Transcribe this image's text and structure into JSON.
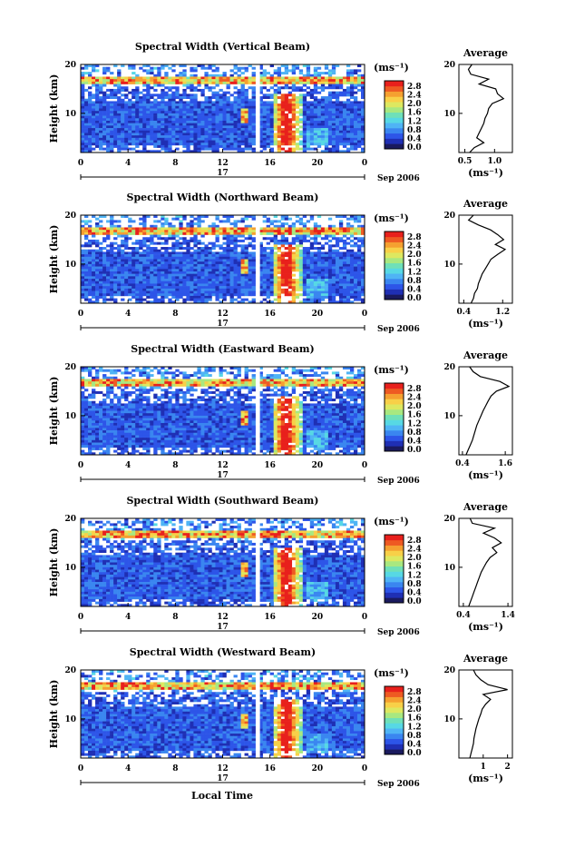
{
  "figure": {
    "title_prefix": "Spectral Width",
    "xlabel": "Local Time",
    "date_label": "Sep 2006",
    "day_label": "17",
    "ylabel": "Height (km)",
    "unit_label": "(ms⁻¹)",
    "avg_title": "Average",
    "avg_unit": "(ms⁻¹)"
  },
  "colorbar": {
    "ticks": [
      "2.8",
      "2.4",
      "2.0",
      "1.6",
      "1.2",
      "0.8",
      "0.4",
      "0.0"
    ],
    "range": [
      0,
      3.0
    ],
    "colors": [
      "#1a1a5e",
      "#1f2fb4",
      "#2d55e8",
      "#3a86f0",
      "#4fb4f5",
      "#57d8e4",
      "#6fe0b8",
      "#a8e880",
      "#dde860",
      "#f8d048",
      "#f5a030",
      "#ee5a22",
      "#e8201c"
    ]
  },
  "chart_data": [
    {
      "type": "heatmap",
      "title": "Spectral Width (Vertical Beam)",
      "xlabel": "Local Time",
      "ylabel": "Height (km)",
      "xticks": [
        "0",
        "4",
        "8",
        "12",
        "16",
        "20",
        "0"
      ],
      "yticks": [
        "20",
        "10"
      ],
      "xlim": [
        0,
        24
      ],
      "ylim": [
        2,
        20
      ],
      "colorbar_ticks": [
        "2.8",
        "2.4",
        "2.0",
        "1.6",
        "1.2",
        "0.8",
        "0.4",
        "0.0"
      ],
      "colorbar_unit": "(ms⁻¹)",
      "profile": {
        "title": "Average",
        "xlabel": "(ms⁻¹)",
        "xticks": [
          "0.5",
          "1.0"
        ],
        "xlim": [
          0.4,
          1.3
        ],
        "yticks": [
          "20",
          "10"
        ],
        "height_km": [
          2,
          3,
          4,
          5,
          6,
          7,
          8,
          9,
          10,
          11,
          12,
          13,
          14,
          15,
          16,
          17,
          18,
          19,
          20
        ],
        "width_ms": [
          0.58,
          0.66,
          0.82,
          0.7,
          0.74,
          0.78,
          0.82,
          0.84,
          0.88,
          0.9,
          0.96,
          1.15,
          1.05,
          1.02,
          0.74,
          0.9,
          0.6,
          0.56,
          0.62
        ]
      }
    },
    {
      "type": "heatmap",
      "title": "Spectral Width (Northward Beam)",
      "xlabel": "Local Time",
      "ylabel": "Height (km)",
      "xticks": [
        "0",
        "4",
        "8",
        "12",
        "16",
        "20",
        "0"
      ],
      "yticks": [
        "20",
        "10"
      ],
      "xlim": [
        0,
        24
      ],
      "ylim": [
        2,
        20
      ],
      "colorbar_ticks": [
        "2.8",
        "2.4",
        "2.0",
        "1.6",
        "1.2",
        "0.8",
        "0.4",
        "0.0"
      ],
      "colorbar_unit": "(ms⁻¹)",
      "profile": {
        "title": "Average",
        "xlabel": "(ms⁻¹)",
        "xticks": [
          "0.4",
          "1.2"
        ],
        "xlim": [
          0.3,
          1.4
        ],
        "yticks": [
          "20",
          "10"
        ],
        "height_km": [
          2,
          3,
          4,
          5,
          6,
          7,
          8,
          9,
          10,
          11,
          12,
          13,
          14,
          15,
          16,
          17,
          18,
          19,
          20
        ],
        "width_ms": [
          0.55,
          0.6,
          0.62,
          0.68,
          0.7,
          0.74,
          0.78,
          0.84,
          0.9,
          0.96,
          1.1,
          1.25,
          1.05,
          1.22,
          1.1,
          0.95,
          0.7,
          0.5,
          0.6
        ]
      }
    },
    {
      "type": "heatmap",
      "title": "Spectral Width (Eastward Beam)",
      "xlabel": "Local Time",
      "ylabel": "Height (km)",
      "xticks": [
        "0",
        "4",
        "8",
        "12",
        "16",
        "20",
        "0"
      ],
      "yticks": [
        "20",
        "10"
      ],
      "xlim": [
        0,
        24
      ],
      "ylim": [
        2,
        20
      ],
      "colorbar_ticks": [
        "2.8",
        "2.4",
        "2.0",
        "1.6",
        "1.2",
        "0.8",
        "0.4",
        "0.0"
      ],
      "colorbar_unit": "(ms⁻¹)",
      "profile": {
        "title": "Average",
        "xlabel": "(ms⁻¹)",
        "xticks": [
          "0.4",
          "1.6"
        ],
        "xlim": [
          0.3,
          1.8
        ],
        "yticks": [
          "20",
          "10"
        ],
        "height_km": [
          2,
          3,
          4,
          5,
          6,
          7,
          8,
          9,
          10,
          11,
          12,
          13,
          14,
          15,
          16,
          17,
          18,
          19,
          20
        ],
        "width_ms": [
          0.5,
          0.56,
          0.62,
          0.68,
          0.72,
          0.76,
          0.8,
          0.86,
          0.92,
          0.98,
          1.05,
          1.12,
          1.2,
          1.35,
          1.7,
          1.45,
          0.9,
          0.7,
          0.6
        ]
      }
    },
    {
      "type": "heatmap",
      "title": "Spectral Width (Southward Beam)",
      "xlabel": "Local Time",
      "ylabel": "Height (km)",
      "xticks": [
        "0",
        "4",
        "8",
        "12",
        "16",
        "20",
        "0"
      ],
      "yticks": [
        "20",
        "10"
      ],
      "xlim": [
        0,
        24
      ],
      "ylim": [
        2,
        20
      ],
      "colorbar_ticks": [
        "2.8",
        "2.4",
        "2.0",
        "1.6",
        "1.2",
        "0.8",
        "0.4",
        "0.0"
      ],
      "colorbar_unit": "(ms⁻¹)",
      "profile": {
        "title": "Average",
        "xlabel": "(ms⁻¹)",
        "xticks": [
          "0.4",
          "1.4"
        ],
        "xlim": [
          0.3,
          1.5
        ],
        "yticks": [
          "20",
          "10"
        ],
        "height_km": [
          2,
          3,
          4,
          5,
          6,
          7,
          8,
          9,
          10,
          11,
          12,
          13,
          14,
          15,
          16,
          17,
          18,
          19,
          20
        ],
        "width_ms": [
          0.52,
          0.56,
          0.6,
          0.64,
          0.68,
          0.72,
          0.76,
          0.8,
          0.86,
          0.92,
          1.0,
          1.15,
          1.05,
          1.25,
          1.1,
          0.85,
          1.1,
          0.6,
          0.55
        ]
      }
    },
    {
      "type": "heatmap",
      "title": "Spectral Width (Westward Beam)",
      "xlabel": "Local Time",
      "ylabel": "Height (km)",
      "xticks": [
        "0",
        "4",
        "8",
        "12",
        "16",
        "20",
        "0"
      ],
      "yticks": [
        "20",
        "10"
      ],
      "xlim": [
        0,
        24
      ],
      "ylim": [
        2,
        20
      ],
      "colorbar_ticks": [
        "2.8",
        "2.4",
        "2.0",
        "1.6",
        "1.2",
        "0.8",
        "0.4",
        "0.0"
      ],
      "colorbar_unit": "(ms⁻¹)",
      "profile": {
        "title": "Average",
        "xlabel": "(ms⁻¹)",
        "xticks": [
          "1",
          "2"
        ],
        "xlim": [
          0,
          2.2
        ],
        "yticks": [
          "20",
          "10"
        ],
        "height_km": [
          2,
          3,
          4,
          5,
          6,
          7,
          8,
          9,
          10,
          11,
          12,
          13,
          14,
          15,
          16,
          17,
          18,
          19,
          20
        ],
        "width_ms": [
          0.45,
          0.5,
          0.55,
          0.6,
          0.62,
          0.66,
          0.7,
          0.76,
          0.82,
          0.9,
          0.96,
          1.1,
          1.3,
          1.0,
          2.0,
          1.2,
          0.9,
          0.7,
          0.6
        ]
      }
    }
  ]
}
